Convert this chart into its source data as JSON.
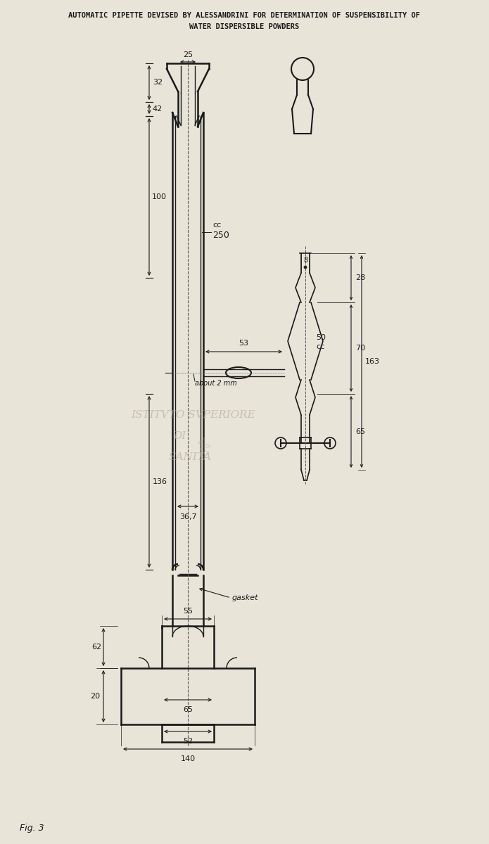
{
  "title_line1": "AUTOMATIC PIPETTE DEVISED BY ALESSANDRINI FOR DETERMINATION OF SUSPENSIBILITY OF",
  "title_line2": "WATER DISPERSIBLE POWDERS",
  "fig_label": "Fig. 3",
  "bg_color": "#e8e4d8",
  "line_color": "#1a1a1a",
  "dim_color": "#1a1a1a",
  "watermark_color": "#c0b8a8"
}
